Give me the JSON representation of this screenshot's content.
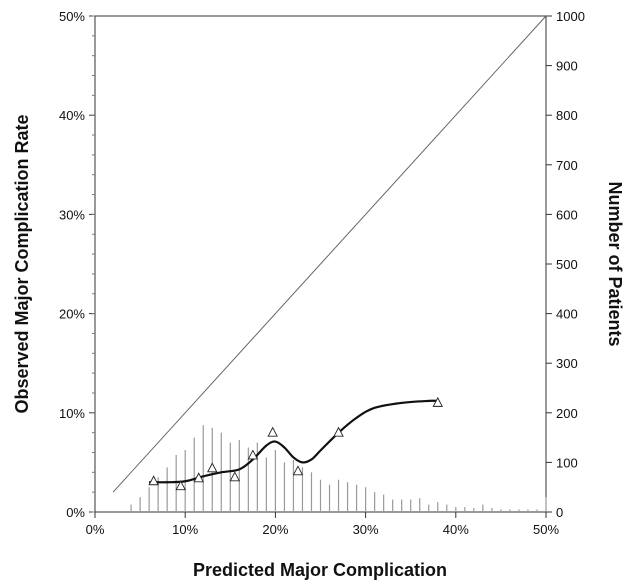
{
  "chart_data": {
    "type": "line",
    "title": "",
    "xlabel": "Predicted Major Complication",
    "ylabel": "Observed Major Complication Rate",
    "y2label": "Number of Patients",
    "xlim": [
      0,
      50
    ],
    "ylim": [
      0,
      50
    ],
    "y2lim": [
      0,
      1000
    ],
    "x_ticks": [
      "0%",
      "10%",
      "20%",
      "30%",
      "40%",
      "50%"
    ],
    "y_ticks": [
      "0%",
      "10%",
      "20%",
      "30%",
      "40%",
      "50%"
    ],
    "y2_ticks": [
      "0",
      "100",
      "200",
      "300",
      "400",
      "500",
      "600",
      "700",
      "800",
      "900",
      "1000"
    ],
    "reference_line": {
      "x": [
        2,
        50
      ],
      "y": [
        2,
        50
      ]
    },
    "observed_points": {
      "x": [
        6.5,
        9.5,
        11.5,
        13,
        15.5,
        17.5,
        19.7,
        22.5,
        27,
        38
      ],
      "y": [
        3.1,
        2.6,
        3.4,
        4.4,
        3.5,
        5.7,
        8.0,
        4.1,
        8.0,
        11.0
      ]
    },
    "smoothed_curve": {
      "x": [
        6,
        8,
        10,
        12,
        14,
        16,
        17.5,
        19,
        20,
        21,
        22,
        23,
        24,
        25,
        27,
        29,
        31,
        34,
        37,
        38
      ],
      "y": [
        3.0,
        3.0,
        3.1,
        3.6,
        4.0,
        4.3,
        5.3,
        6.7,
        7.1,
        6.5,
        5.5,
        5.0,
        5.3,
        6.2,
        8.0,
        9.5,
        10.5,
        11.0,
        11.2,
        11.2
      ]
    },
    "histogram": {
      "x": [
        4,
        5,
        6,
        7,
        8,
        9,
        10,
        11,
        12,
        13,
        14,
        15,
        16,
        17,
        18,
        19,
        20,
        21,
        22,
        23,
        24,
        25,
        26,
        27,
        28,
        29,
        30,
        31,
        32,
        33,
        34,
        35,
        36,
        37,
        38,
        39,
        40,
        41,
        42,
        43,
        44,
        45,
        46,
        47,
        48,
        49,
        50
      ],
      "counts": [
        15,
        30,
        50,
        70,
        90,
        115,
        125,
        150,
        175,
        170,
        160,
        140,
        145,
        130,
        140,
        110,
        125,
        100,
        105,
        90,
        80,
        65,
        55,
        65,
        60,
        55,
        50,
        40,
        35,
        25,
        25,
        25,
        28,
        15,
        20,
        15,
        10,
        10,
        8,
        15,
        8,
        5,
        5,
        5,
        5,
        5,
        30
      ]
    },
    "grid": false
  }
}
